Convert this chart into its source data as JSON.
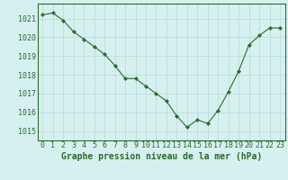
{
  "hours": [
    0,
    1,
    2,
    3,
    4,
    5,
    6,
    7,
    8,
    9,
    10,
    11,
    12,
    13,
    14,
    15,
    16,
    17,
    18,
    19,
    20,
    21,
    22,
    23
  ],
  "pressure": [
    1021.2,
    1021.3,
    1020.9,
    1020.3,
    1019.9,
    1019.5,
    1019.1,
    1018.5,
    1017.8,
    1017.8,
    1017.4,
    1017.0,
    1016.6,
    1015.8,
    1015.2,
    1015.6,
    1015.4,
    1016.1,
    1017.1,
    1018.2,
    1019.6,
    1020.1,
    1020.5,
    1020.5
  ],
  "line_color": "#2d6a2d",
  "marker": "D",
  "marker_size": 2.2,
  "background_color": "#d6f0f0",
  "grid_color": "#b8d8d8",
  "ylabel_ticks": [
    1015,
    1016,
    1017,
    1018,
    1019,
    1020,
    1021
  ],
  "xlabel": "Graphe pression niveau de la mer (hPa)",
  "xlabel_fontsize": 7,
  "tick_fontsize": 6,
  "ylim": [
    1014.5,
    1021.8
  ],
  "xlim": [
    -0.5,
    23.5
  ]
}
